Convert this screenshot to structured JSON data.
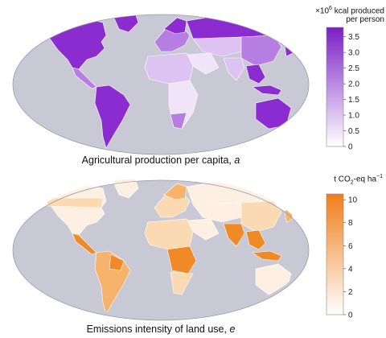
{
  "panel_a": {
    "caption_text": "Agricultural production per capita, ",
    "caption_var": "a",
    "colorbar": {
      "unit_prefix": "×10",
      "unit_exp": "6",
      "unit_rest": " kcal produced",
      "unit_line2": "per person",
      "ticks": [
        "0",
        "0.5",
        "1.0",
        "1.5",
        "2.0",
        "2.5",
        "3.0",
        "3.5"
      ],
      "tick_values": [
        0,
        0.5,
        1.0,
        1.5,
        2.0,
        2.5,
        3.0,
        3.5
      ],
      "range": [
        0,
        3.8
      ],
      "color_low": "#ffffff",
      "color_high": "#7a1fc4"
    },
    "colors": {
      "ocean": "#c9c9d6",
      "dark": "#8a2ccf",
      "mid": "#b67ee3",
      "light": "#dcc3f1",
      "pale": "#efe4f8"
    }
  },
  "panel_e": {
    "caption_text": "Emissions intensity of land use, ",
    "caption_var": "e",
    "colorbar": {
      "unit_main": "t CO",
      "unit_sub": "2",
      "unit_mid": "-eq ha",
      "unit_sup": "−1",
      "ticks": [
        "0",
        "2",
        "4",
        "6",
        "8",
        "10"
      ],
      "tick_values": [
        0,
        2,
        4,
        6,
        8,
        10
      ],
      "range": [
        0,
        10.5
      ],
      "color_low": "#ffffff",
      "color_high": "#f07e1a"
    },
    "colors": {
      "ocean": "#c9c9d6",
      "dark": "#f08a26",
      "mid": "#f7b36b",
      "light": "#fbd9b2",
      "pale": "#fdf0e2"
    }
  }
}
